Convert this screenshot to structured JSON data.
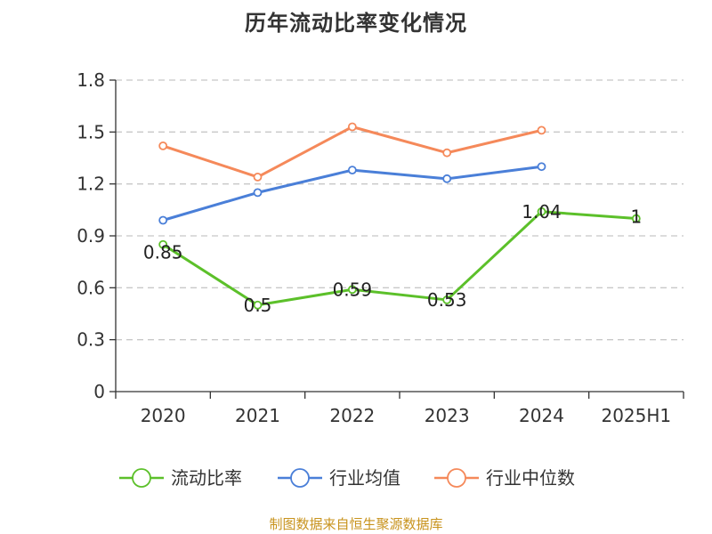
{
  "chart_data": {
    "type": "line",
    "title": "历年流动比率变化情况",
    "categories": [
      "2020",
      "2021",
      "2022",
      "2023",
      "2024",
      "2025H1"
    ],
    "ylim": [
      0,
      1.8
    ],
    "yticks": [
      "0",
      "0.3",
      "0.6",
      "0.9",
      "1.2",
      "1.5",
      "1.8"
    ],
    "grid": true,
    "legend_position": "bottom",
    "series": [
      {
        "name": "流动比率",
        "color": "#5cc02a",
        "values": [
          0.85,
          0.5,
          0.59,
          0.53,
          1.04,
          1
        ],
        "labels": [
          "0.85",
          "0.5",
          "0.59",
          "0.53",
          "1.04",
          "1"
        ]
      },
      {
        "name": "行业均值",
        "color": "#4a7fd8",
        "values": [
          0.99,
          1.15,
          1.28,
          1.23,
          1.3,
          null
        ]
      },
      {
        "name": "行业中位数",
        "color": "#f5895a",
        "values": [
          1.42,
          1.24,
          1.53,
          1.38,
          1.51,
          null
        ]
      }
    ]
  },
  "footer": {
    "source": "制图数据来自恒生聚源数据库"
  }
}
